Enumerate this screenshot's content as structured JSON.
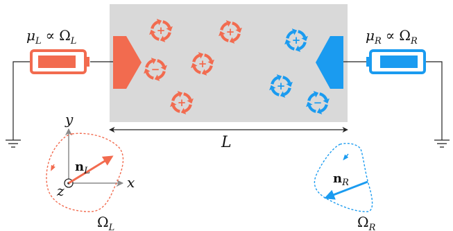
{
  "labels": {
    "left_battery": {
      "mu": "μ",
      "mu_sub": "L",
      "rel": "∝",
      "omega": "Ω",
      "omega_sub": "L"
    },
    "right_battery": {
      "mu": "μ",
      "mu_sub": "R",
      "rel": "∝",
      "omega": "Ω",
      "omega_sub": "R"
    },
    "length": "L",
    "axis_x": "x",
    "axis_y": "y",
    "axis_z": "z",
    "normal_left": {
      "base": "n",
      "sub": "L"
    },
    "normal_right": {
      "base": "n",
      "sub": "R"
    },
    "region_left": {
      "base": "Ω",
      "sub": "L"
    },
    "region_right": {
      "base": "Ω",
      "sub": "R"
    }
  },
  "particles": {
    "left_signs": [
      "+",
      "+",
      "−",
      "+",
      "+"
    ],
    "right_signs": [
      "+",
      "+",
      "−"
    ]
  },
  "colors": {
    "left": "#f26b4f",
    "right": "#1a9bf0",
    "channel": "#d9d9d9",
    "wire": "#222222",
    "axis": "#8a8a8a"
  },
  "icons": [
    "battery-icon",
    "ground-icon",
    "swirl-particle-icon",
    "arrow-icon"
  ]
}
